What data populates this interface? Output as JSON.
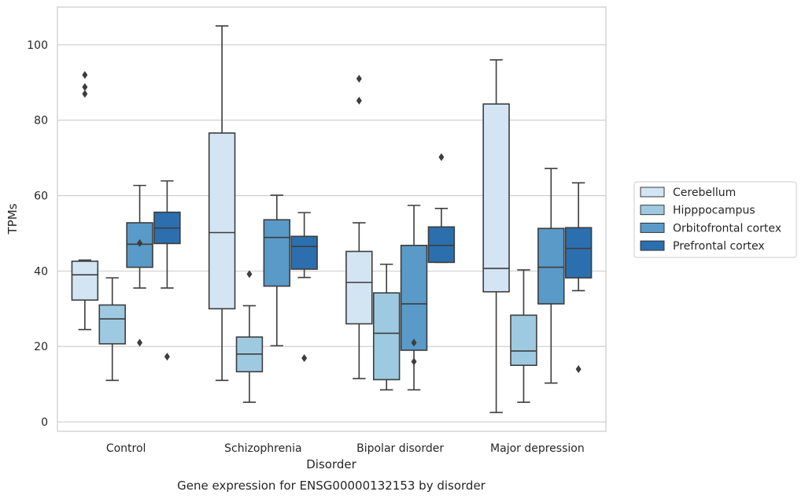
{
  "chart_data": {
    "type": "box",
    "title": "",
    "caption": "Gene expression for ENSG00000132153 by disorder",
    "xlabel": "Disorder",
    "ylabel": "TPMs",
    "ylim": [
      -2.5,
      110
    ],
    "yticks": [
      0,
      20,
      40,
      60,
      80,
      100
    ],
    "grid": "y",
    "legend_position": "right",
    "categories": [
      "Control",
      "Schizophrenia",
      "Bipolar disorder",
      "Major depression"
    ],
    "series": [
      {
        "name": "Cerebellum",
        "color": "#d3e4f3",
        "boxes": [
          {
            "whislo": 24.5,
            "q1": 32.3,
            "med": 39.0,
            "q3": 42.6,
            "whishi": 42.9,
            "fliers": [
              87.0,
              88.8,
              92.0
            ]
          },
          {
            "whislo": 11.0,
            "q1": 30.0,
            "med": 50.2,
            "q3": 76.6,
            "whishi": 105.0,
            "fliers": []
          },
          {
            "whislo": 11.5,
            "q1": 26.0,
            "med": 37.0,
            "q3": 45.2,
            "whishi": 52.8,
            "fliers": [
              85.2,
              91.0
            ]
          },
          {
            "whislo": 2.5,
            "q1": 34.5,
            "med": 40.7,
            "q3": 84.3,
            "whishi": 96.0,
            "fliers": []
          }
        ]
      },
      {
        "name": "Hipppocampus",
        "color": "#9ecae1",
        "boxes": [
          {
            "whislo": 11.0,
            "q1": 20.7,
            "med": 27.3,
            "q3": 31.0,
            "whishi": 38.2,
            "fliers": []
          },
          {
            "whislo": 5.2,
            "q1": 13.3,
            "med": 18.0,
            "q3": 22.5,
            "whishi": 30.8,
            "fliers": [
              39.2
            ]
          },
          {
            "whislo": 8.5,
            "q1": 11.2,
            "med": 23.5,
            "q3": 34.2,
            "whishi": 41.8,
            "fliers": []
          },
          {
            "whislo": 5.2,
            "q1": 15.0,
            "med": 18.8,
            "q3": 28.3,
            "whishi": 40.3,
            "fliers": []
          }
        ]
      },
      {
        "name": "Orbitofrontal cortex",
        "color": "#5a9ac8",
        "boxes": [
          {
            "whislo": 35.5,
            "q1": 41.0,
            "med": 47.1,
            "q3": 52.8,
            "whishi": 62.7,
            "fliers": [
              21.0,
              47.4
            ]
          },
          {
            "whislo": 20.2,
            "q1": 36.0,
            "med": 48.9,
            "q3": 53.6,
            "whishi": 60.1,
            "fliers": []
          },
          {
            "whislo": 8.5,
            "q1": 19.0,
            "med": 31.3,
            "q3": 46.8,
            "whishi": 57.4,
            "fliers": [
              16.0,
              21.0
            ]
          },
          {
            "whislo": 10.3,
            "q1": 31.3,
            "med": 41.0,
            "q3": 51.3,
            "whishi": 67.2,
            "fliers": []
          }
        ]
      },
      {
        "name": "Prefrontal cortex",
        "color": "#2b6fae",
        "boxes": [
          {
            "whislo": 35.5,
            "q1": 47.3,
            "med": 51.4,
            "q3": 55.6,
            "whishi": 63.9,
            "fliers": [
              17.3
            ]
          },
          {
            "whislo": 38.3,
            "q1": 40.5,
            "med": 46.5,
            "q3": 49.2,
            "whishi": 55.5,
            "fliers": [
              16.9
            ]
          },
          {
            "whislo": 42.3,
            "q1": 42.3,
            "med": 46.8,
            "q3": 51.7,
            "whishi": 56.6,
            "fliers": [
              70.2
            ]
          },
          {
            "whislo": 34.8,
            "q1": 38.2,
            "med": 46.0,
            "q3": 51.5,
            "whishi": 63.4,
            "fliers": [
              14.0
            ]
          }
        ]
      }
    ]
  }
}
